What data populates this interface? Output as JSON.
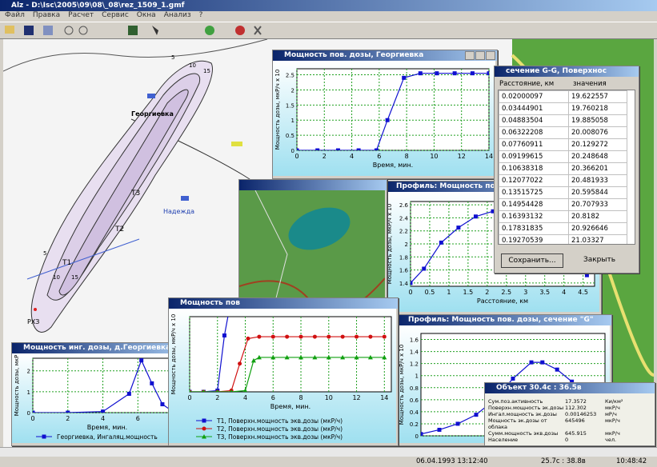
{
  "app": {
    "title": "Alz - D:\\Isc\\2005\\09\\08\\_08\\rez_1509_1.gmf",
    "menu": [
      "Файл",
      "Правка",
      "Расчет",
      "Сервис",
      "Окна",
      "Анализ",
      "?"
    ]
  },
  "map": {
    "places": [
      "Георгиевка",
      "Надежда",
      "РХЗ"
    ],
    "points": [
      "T1",
      "T2",
      "T3"
    ],
    "contour_labels": [
      "5",
      "10",
      "15",
      "5",
      "10",
      "15"
    ]
  },
  "georgievka_chart": {
    "type": "line",
    "title": "Мощность пов. дозы, Георгиевка",
    "xlabel": "Время, мин.",
    "ylabel": "Мощность дозы, мкР/ч х 10",
    "xlim": [
      0,
      14
    ],
    "ylim": [
      0,
      2.7
    ],
    "xticks": [
      0,
      2,
      4,
      6,
      8,
      10,
      12,
      14
    ],
    "yticks": [
      0,
      0.5,
      1,
      1.5,
      2,
      2.5
    ],
    "series": [
      {
        "color": "#1010d0",
        "marker": "square",
        "x": [
          0,
          1.5,
          3,
          4.5,
          5.8,
          6.6,
          7.8,
          9,
          10.2,
          11.5,
          12.8,
          14
        ],
        "values": [
          0,
          0,
          0,
          0,
          0,
          1.0,
          2.4,
          2.55,
          2.55,
          2.55,
          2.55,
          2.55
        ]
      }
    ]
  },
  "profile_chart": {
    "type": "line",
    "title": "Профиль: Мощность пов. доз",
    "xlabel": "Расстояние, км",
    "ylabel": "Мощность дозы, мкР/ч х 10",
    "xlim": [
      0,
      4.8
    ],
    "ylim": [
      1.35,
      2.65
    ],
    "xticks": [
      0,
      0.5,
      1,
      1.5,
      2,
      2.5,
      3,
      3.5,
      4,
      4.5
    ],
    "yticks": [
      1.4,
      1.6,
      1.8,
      2,
      2.2,
      2.4,
      2.6
    ],
    "series": [
      {
        "color": "#1010d0",
        "marker": "square",
        "x": [
          0,
          0.35,
          0.8,
          1.25,
          1.7,
          2.15,
          2.6,
          3.05,
          3.5,
          4.0,
          4.6
        ],
        "values": [
          1.4,
          1.62,
          2.02,
          2.25,
          2.42,
          2.5,
          2.57,
          2.6,
          2.55,
          2.3,
          1.52
        ]
      }
    ]
  },
  "section_table": {
    "title": "сечение G-G, Поверхнос",
    "columns": [
      "Расстояние, км",
      "значения"
    ],
    "rows": [
      [
        "0.02000097",
        "19.622557"
      ],
      [
        "0.03444901",
        "19.760218"
      ],
      [
        "0.04883504",
        "19.885058"
      ],
      [
        "0.06322208",
        "20.008076"
      ],
      [
        "0.07760911",
        "20.129272"
      ],
      [
        "0.09199615",
        "20.248648"
      ],
      [
        "0.10638318",
        "20.366201"
      ],
      [
        "0.12077022",
        "20.481933"
      ],
      [
        "0.13515725",
        "20.595844"
      ],
      [
        "0.14954428",
        "20.707933"
      ],
      [
        "0.16393132",
        "20.8182"
      ],
      [
        "0.17831835",
        "20.926646"
      ],
      [
        "0.19270539",
        "21.03327"
      ]
    ],
    "buttons": [
      "Сохранить...",
      "Закрыть"
    ]
  },
  "combined_chart": {
    "type": "line",
    "title": "Мощность пов",
    "xlabel": "Время, мин.",
    "ylabel": "Мощность дозы, мкР/ч х 10",
    "xlim": [
      0,
      14.5
    ],
    "ylim": [
      0,
      1.2
    ],
    "xticks": [
      0,
      2,
      4,
      6,
      8,
      10,
      12,
      14
    ],
    "yticks": [],
    "series": [
      {
        "name": "T1, Поверхн.мощность экв.дозы (мкР/ч)",
        "color": "#1010d0",
        "marker": "square",
        "x": [
          0,
          1,
          2,
          2.5,
          3
        ],
        "values": [
          0,
          0,
          0.02,
          0.9,
          1.5
        ]
      },
      {
        "name": "T2, Поверхн.мощность экв.дозы (мкР/ч)",
        "color": "#d01010",
        "marker": "circle",
        "x": [
          0,
          1,
          2,
          3,
          3.6,
          4.2,
          5,
          6,
          7,
          8,
          9,
          10,
          11,
          12,
          13,
          14
        ],
        "values": [
          0,
          0,
          0,
          0.02,
          0.45,
          0.85,
          0.88,
          0.88,
          0.88,
          0.88,
          0.88,
          0.88,
          0.88,
          0.88,
          0.88,
          0.88
        ]
      },
      {
        "name": "T3, Поверхн.мощность экв.дозы (мкР/ч)",
        "color": "#10a010",
        "marker": "triangle",
        "x": [
          0,
          1,
          2,
          3,
          4,
          4.6,
          5,
          6,
          7,
          8,
          9,
          10,
          11,
          12,
          13,
          14
        ],
        "values": [
          0,
          0,
          0,
          0,
          0.02,
          0.5,
          0.55,
          0.55,
          0.55,
          0.55,
          0.55,
          0.55,
          0.55,
          0.55,
          0.55,
          0.55
        ]
      }
    ]
  },
  "inhal_chart": {
    "type": "line",
    "title": "Мощность инг. дозы, д.Георгиевка",
    "xlabel": "Время, мин.",
    "ylabel": "Мощность дозы, мкР",
    "xlim": [
      0,
      8.5
    ],
    "ylim": [
      0,
      2.6
    ],
    "xticks": [
      0,
      2,
      4,
      6,
      8
    ],
    "yticks": [
      0,
      1,
      2
    ],
    "series": [
      {
        "name": "Георгиевка, Ингаляц.мощность",
        "color": "#1010d0",
        "marker": "square",
        "x": [
          0,
          2,
          4,
          5.5,
          6.2,
          6.8,
          7.4,
          8
        ],
        "values": [
          0,
          0,
          0.05,
          0.9,
          2.5,
          1.4,
          0.4,
          0.05
        ]
      }
    ]
  },
  "section_chart": {
    "type": "line",
    "title": "Профиль: Мощность пов. дозы, сечение \"G\"",
    "ylabel": "Мощность дозы, мкР/ч х 10",
    "xlim": [
      0,
      5
    ],
    "ylim": [
      0,
      1.7
    ],
    "xticks": [],
    "yticks": [
      0,
      0.2,
      0.4,
      0.6,
      0.8,
      1,
      1.2,
      1.4,
      1.6
    ],
    "series": [
      {
        "color": "#1010d0",
        "marker": "square",
        "x": [
          0,
          0.5,
          1,
          1.5,
          2,
          2.5,
          3,
          3.3,
          3.7,
          4.1
        ],
        "values": [
          0.03,
          0.1,
          0.2,
          0.35,
          0.6,
          0.95,
          1.22,
          1.22,
          1.1,
          0.9
        ]
      }
    ]
  },
  "object_popup": {
    "title": "Объект 30.4с : 36.5в",
    "rows": [
      [
        "Сум.поз.активность",
        "17.3572",
        "Ки/км²"
      ],
      [
        "Поверхн.мощность эк.дозы",
        "112.302",
        "мкР/ч"
      ],
      [
        "Ингал.мощность эк.дозы",
        "0.00146253",
        "мР/ч"
      ],
      [
        "Мощность эк.дозы от облака",
        "645496",
        "мкР/ч"
      ],
      [
        "Сумм.мощность экв.дозы",
        "645.915",
        "мкР/ч"
      ],
      [
        "Население",
        "0",
        "чел."
      ]
    ]
  },
  "status": [
    "06.04.1993 13:12:40",
    "25.7с : 38.8в",
    "10:48:42"
  ]
}
